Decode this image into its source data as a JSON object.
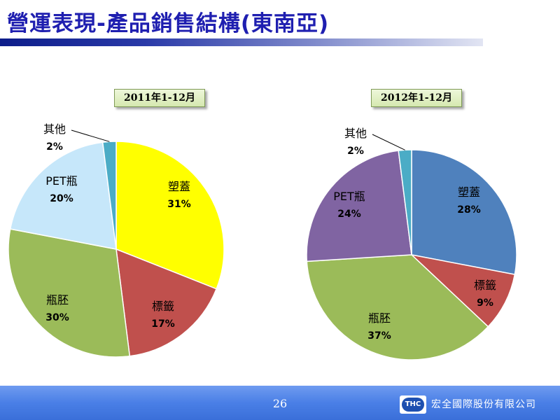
{
  "slide": {
    "title": "營運表現-產品銷售結構(東南亞)",
    "page_number": "26",
    "company": "宏全國際股份有限公司",
    "logo_text": "THC"
  },
  "colors": {
    "title": "#1f1fb0",
    "footer": "#4a7fe6",
    "period_box": "#d5e8b0"
  },
  "chart_data": [
    {
      "type": "pie",
      "title": "2011年1-12月",
      "slices": [
        {
          "label": "塑蓋",
          "value": 31,
          "value_label": "31%",
          "color": "#ffff00"
        },
        {
          "label": "標籤",
          "value": 17,
          "value_label": "17%",
          "color": "#c0504d"
        },
        {
          "label": "瓶胚",
          "value": 30,
          "value_label": "30%",
          "color": "#9bbb59"
        },
        {
          "label": "PET瓶",
          "value": 20,
          "value_label": "20%",
          "color": "#c6e7fa"
        },
        {
          "label": "其他",
          "value": 2,
          "value_label": "2%",
          "color": "#4bacc6"
        }
      ]
    },
    {
      "type": "pie",
      "title": "2012年1-12月",
      "slices": [
        {
          "label": "塑蓋",
          "value": 28,
          "value_label": "28%",
          "color": "#4f81bd"
        },
        {
          "label": "標籤",
          "value": 9,
          "value_label": "9%",
          "color": "#c0504d"
        },
        {
          "label": "瓶胚",
          "value": 37,
          "value_label": "37%",
          "color": "#9bbb59"
        },
        {
          "label": "PET瓶",
          "value": 24,
          "value_label": "24%",
          "color": "#8064a2"
        },
        {
          "label": "其他",
          "value": 2,
          "value_label": "2%",
          "color": "#4bacc6"
        }
      ]
    }
  ]
}
